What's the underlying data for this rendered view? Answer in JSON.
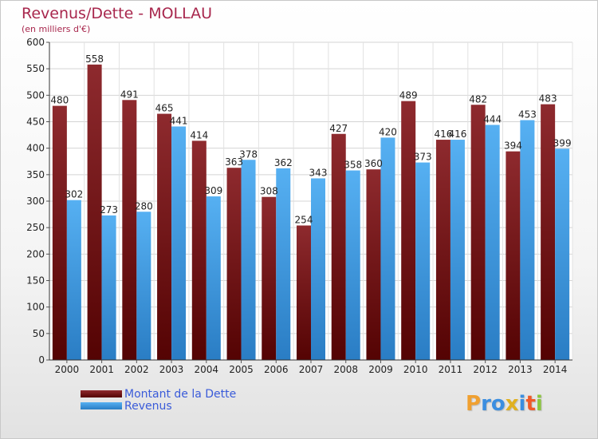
{
  "chart_data": {
    "type": "bar",
    "title": "Revenus/Dette - MOLLAU",
    "subtitle": "(en milliers d'€)",
    "categories": [
      "2000",
      "2001",
      "2002",
      "2003",
      "2004",
      "2005",
      "2006",
      "2007",
      "2008",
      "2009",
      "2010",
      "2011",
      "2012",
      "2013",
      "2014"
    ],
    "series": [
      {
        "name": "Montant de la Dette",
        "color": "#7a1616",
        "values": [
          480,
          558,
          491,
          465,
          414,
          363,
          308,
          254,
          427,
          360,
          489,
          416,
          482,
          394,
          483
        ]
      },
      {
        "name": "Revenus",
        "color": "#3f9fe6",
        "values": [
          302,
          273,
          280,
          441,
          309,
          378,
          362,
          343,
          358,
          420,
          373,
          416,
          444,
          453,
          399
        ]
      }
    ],
    "ylim": [
      0,
      600
    ],
    "yticks": [
      0,
      50,
      100,
      150,
      200,
      250,
      300,
      350,
      400,
      450,
      500,
      550,
      600
    ],
    "grid": true,
    "legend": "bottom-left"
  },
  "logo": {
    "letters": [
      "P",
      "r",
      "o",
      "x",
      "i",
      "t",
      "i"
    ],
    "colors": [
      "#f0a030",
      "#3b8ee0",
      "#3b8ee0",
      "#e0b020",
      "#3b8ee0",
      "#f05a28",
      "#8cc63f"
    ]
  }
}
